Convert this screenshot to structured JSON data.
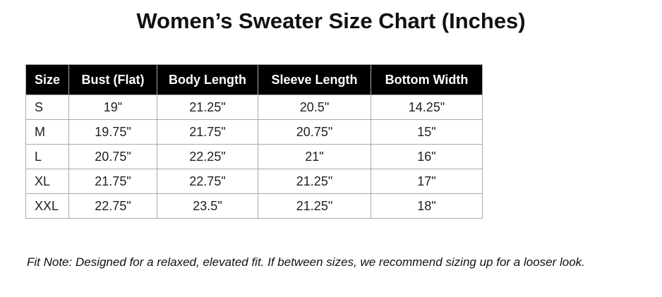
{
  "title": "Women’s Sweater Size Chart (Inches)",
  "table": {
    "columns": [
      "Size",
      "Bust (Flat)",
      "Body Length",
      "Sleeve Length",
      "Bottom Width"
    ],
    "rows": [
      [
        "S",
        "19\"",
        "21.25\"",
        "20.5\"",
        "14.25\""
      ],
      [
        "M",
        "19.75\"",
        "21.75\"",
        "20.75\"",
        "15\""
      ],
      [
        "L",
        "20.75\"",
        "22.25\"",
        "21\"",
        "16\""
      ],
      [
        "XL",
        "21.75\"",
        "22.75\"",
        "21.25\"",
        "17\""
      ],
      [
        "XXL",
        "22.75\"",
        "23.5\"",
        "21.25\"",
        "18\""
      ]
    ]
  },
  "fit_note": "Fit Note: Designed for a relaxed, elevated fit. If between sizes, we recommend sizing up for a looser look.",
  "colors": {
    "header_bg": "#000000",
    "header_text": "#ffffff",
    "border": "#a9a9a9",
    "body_text": "#1f1f1f",
    "background": "#ffffff"
  },
  "chart_data": {
    "type": "table",
    "title": "Women’s Sweater Size Chart (Inches)",
    "columns": [
      "Size",
      "Bust (Flat)",
      "Body Length",
      "Sleeve Length",
      "Bottom Width"
    ],
    "rows": [
      [
        "S",
        "19\"",
        "21.25\"",
        "20.5\"",
        "14.25\""
      ],
      [
        "M",
        "19.75\"",
        "21.75\"",
        "20.75\"",
        "15\""
      ],
      [
        "L",
        "20.75\"",
        "22.25\"",
        "21\"",
        "16\""
      ],
      [
        "XL",
        "21.75\"",
        "22.75\"",
        "21.25\"",
        "17\""
      ],
      [
        "XXL",
        "22.75\"",
        "23.5\"",
        "21.25\"",
        "18\""
      ]
    ],
    "numeric": {
      "sizes": [
        "S",
        "M",
        "L",
        "XL",
        "XXL"
      ],
      "bust_flat_in": [
        19,
        19.75,
        20.75,
        21.75,
        22.75
      ],
      "body_length_in": [
        21.25,
        21.75,
        22.25,
        22.75,
        23.5
      ],
      "sleeve_length_in": [
        20.5,
        20.75,
        21,
        21.25,
        21.25
      ],
      "bottom_width_in": [
        14.25,
        15,
        16,
        17,
        18
      ]
    },
    "note": "Fit Note: Designed for a relaxed, elevated fit. If between sizes, we recommend sizing up for a looser look."
  }
}
